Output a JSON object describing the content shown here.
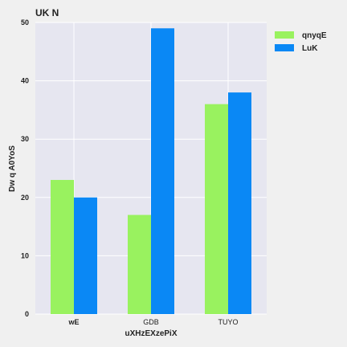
{
  "chart_data": {
    "type": "bar",
    "title": "UK  N",
    "xlabel": "uXHzEXzePiX",
    "ylabel": "Dw q A0YoS",
    "categories": [
      "wE",
      "GDB",
      "TUYO"
    ],
    "category_label_bold": [
      true,
      false,
      false
    ],
    "series": [
      {
        "name": "qnyqE",
        "color": "#99f25f",
        "values": [
          23,
          17,
          36
        ]
      },
      {
        "name": "LuK",
        "color": "#0a88f5",
        "values": [
          20,
          49,
          38
        ]
      }
    ],
    "ylim": [
      0,
      50
    ],
    "yticks": [
      "0",
      "10",
      "20",
      "30",
      "40",
      "50"
    ],
    "grid": true,
    "legend_position": "top-right",
    "colors": {
      "plot_bg": "#e6e6f0",
      "grid": "#ffffff",
      "page_bg": "#f0f0f0"
    }
  }
}
